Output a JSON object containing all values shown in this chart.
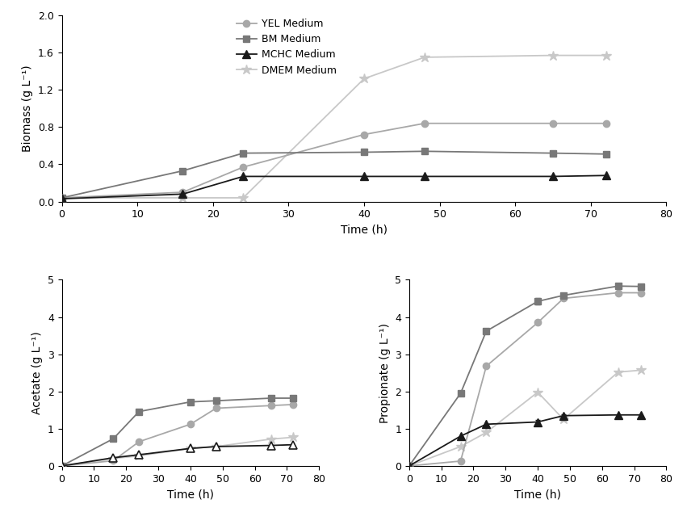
{
  "time_biomass": [
    0,
    16,
    24,
    40,
    48,
    65,
    72
  ],
  "biomass_YEL": [
    0.04,
    0.1,
    0.37,
    0.72,
    0.84,
    0.84,
    0.84
  ],
  "biomass_BM": [
    0.04,
    0.33,
    0.52,
    0.53,
    0.54,
    0.52,
    0.51
  ],
  "biomass_MCHC": [
    0.03,
    0.08,
    0.27,
    0.27,
    0.27,
    0.27,
    0.28
  ],
  "biomass_DMEM": [
    0.04,
    0.04,
    0.04,
    1.32,
    1.55,
    1.57,
    1.57
  ],
  "time_acetate": [
    0,
    16,
    24,
    40,
    48,
    65,
    72
  ],
  "acetate_YEL": [
    0.0,
    0.14,
    0.65,
    1.12,
    1.55,
    1.62,
    1.65
  ],
  "acetate_BM": [
    0.0,
    0.73,
    1.46,
    1.72,
    1.75,
    1.82,
    1.82
  ],
  "acetate_MCHC": [
    0.0,
    0.22,
    0.3,
    0.47,
    0.52,
    0.55,
    0.57
  ],
  "acetate_DMEM": [
    0.0,
    0.2,
    0.27,
    0.47,
    0.52,
    0.72,
    0.77
  ],
  "time_propionate": [
    0,
    16,
    24,
    40,
    48,
    65,
    72
  ],
  "propionate_YEL": [
    0.0,
    0.13,
    2.68,
    3.85,
    4.5,
    4.65,
    4.65
  ],
  "propionate_BM": [
    0.0,
    1.95,
    3.62,
    4.42,
    4.58,
    4.83,
    4.82
  ],
  "propionate_MCHC": [
    0.0,
    0.8,
    1.12,
    1.18,
    1.35,
    1.37,
    1.37
  ],
  "propionate_DMEM": [
    0.0,
    0.52,
    0.9,
    1.98,
    1.25,
    2.52,
    2.57
  ],
  "color_YEL": "#a8a8a8",
  "color_BM": "#787878",
  "color_MCHC": "#1a1a1a",
  "color_DMEM": "#c8c8c8",
  "legend_labels": [
    "YEL Medium",
    "BM Medium",
    "MCHC Medium",
    "DMEM Medium"
  ],
  "xlabel": "Time (h)",
  "ylabel_biomass": "Biomass (g L⁻¹)",
  "ylabel_acetate": "Acetate (g L⁻¹)",
  "ylabel_propionate": "Propionate (g L⁻¹)",
  "xlim": [
    0,
    80
  ],
  "xticks": [
    0,
    10,
    20,
    30,
    40,
    50,
    60,
    70,
    80
  ],
  "ylim_biomass": [
    0.0,
    2.0
  ],
  "yticks_biomass": [
    0.0,
    0.4,
    0.8,
    1.2,
    1.6,
    2.0
  ],
  "ylim_acetate": [
    0,
    5
  ],
  "yticks_acetate": [
    0,
    1,
    2,
    3,
    4,
    5
  ],
  "ylim_propionate": [
    0,
    5
  ],
  "yticks_propionate": [
    0,
    1,
    2,
    3,
    4,
    5
  ]
}
